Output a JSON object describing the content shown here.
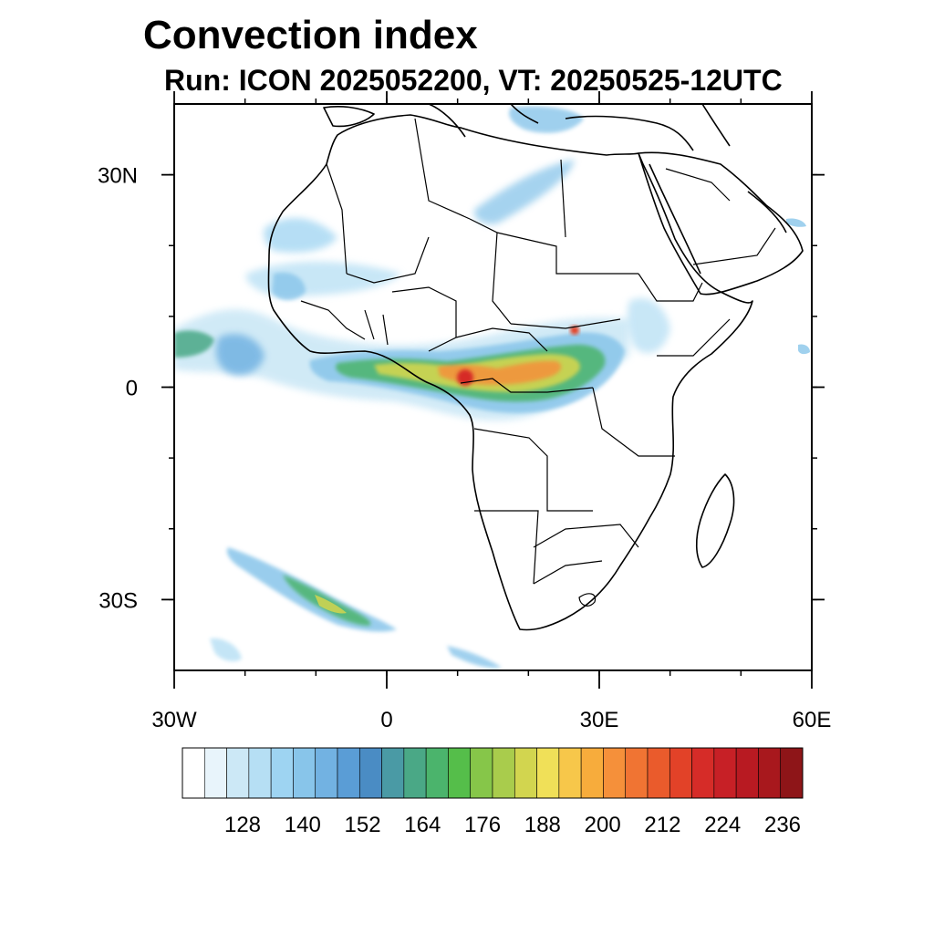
{
  "title": "Convection index",
  "subtitle": "Run: ICON 2025052200,  VT: 20250525-12UTC",
  "map": {
    "lat_labels": [
      {
        "text": "30N",
        "lat": 30
      },
      {
        "text": "0",
        "lat": 0
      },
      {
        "text": "30S",
        "lat": -30
      }
    ],
    "lon_labels": [
      {
        "text": "30W",
        "lon": -30
      },
      {
        "text": "0",
        "lon": 0
      },
      {
        "text": "30E",
        "lon": 30
      },
      {
        "text": "60E",
        "lon": 60
      }
    ],
    "lon_range": [
      -30,
      60
    ],
    "lat_range": [
      -40,
      40
    ],
    "land_color": "#ffffff",
    "border_color": "#000000"
  },
  "colorbar": {
    "colors": [
      "#ffffff",
      "#e8f4fb",
      "#cce8f6",
      "#b6dff4",
      "#9ed4f2",
      "#88c5ea",
      "#72b2e2",
      "#5a9dd6",
      "#4a8cc4",
      "#4a9aa5",
      "#4aa886",
      "#4bb46c",
      "#55be4a",
      "#86c649",
      "#a9cc4c",
      "#d2d54f",
      "#f0e058",
      "#f7c74a",
      "#f7ac3c",
      "#f5903a",
      "#f07433",
      "#ea5b2c",
      "#e24228",
      "#d62c28",
      "#c72026",
      "#b81a22",
      "#a8181d",
      "#8e1518"
    ],
    "tick_labels": [
      "128",
      "140",
      "152",
      "164",
      "176",
      "188",
      "200",
      "212",
      "224",
      "236"
    ]
  }
}
